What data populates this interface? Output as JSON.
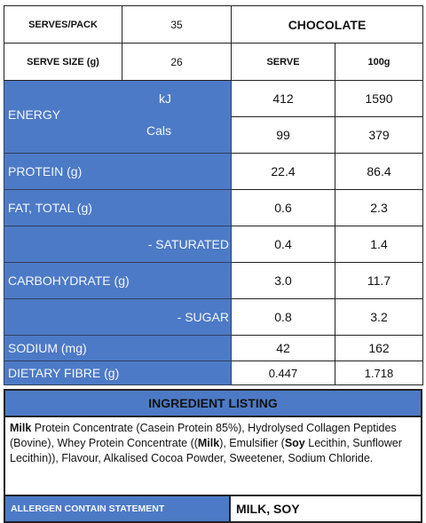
{
  "header": {
    "serves_label": "SERVES/PACK",
    "serves_value": "35",
    "flavour": "CHOCOLATE",
    "serve_size_label": "SERVE SIZE (g)",
    "serve_size_value": "26",
    "col_serve": "SERVE",
    "col_100g": "100g"
  },
  "rows": {
    "energy": {
      "label": "ENERGY",
      "kj_unit": "kJ",
      "kj_serve": "412",
      "kj_100g": "1590",
      "cal_unit": "Cals",
      "cal_serve": "99",
      "cal_100g": "379"
    },
    "protein": {
      "label": "PROTEIN (g)",
      "serve": "22.4",
      "per100": "86.4"
    },
    "fat": {
      "label": "FAT, TOTAL (g)",
      "serve": "0.6",
      "per100": "2.3"
    },
    "saturated": {
      "label": "- SATURATED",
      "serve": "0.4",
      "per100": "1.4"
    },
    "carbohydrate": {
      "label": "CARBOHYDRATE (g)",
      "serve": "3.0",
      "per100": "11.7"
    },
    "sugar": {
      "label": "- SUGAR",
      "serve": "0.8",
      "per100": "3.2"
    },
    "sodium": {
      "label": "SODIUM (mg)",
      "serve": "42",
      "per100": "162"
    },
    "fibre": {
      "label": "DIETARY FIBRE (g)",
      "serve": "0.447",
      "per100": "1.718"
    }
  },
  "ingredients": {
    "heading": "INGREDIENT LISTING",
    "p1_bold": "Milk",
    "p1": " Protein Concentrate (Casein Protein 85%), Hydrolysed Collagen Peptides (Bovine), Whey Protein Concentrate ((",
    "p2_bold": "Milk",
    "p2": "), Emulsifier (",
    "p3_bold": "Soy",
    "p3": " Lecithin, Sunflower Lecithin)), Flavour, Alkalised Cocoa Powder, Sweetener, Sodium Chloride."
  },
  "allergen": {
    "label": "ALLERGEN CONTAIN STATEMENT",
    "value": "MILK, SOY"
  },
  "colors": {
    "label_blue": "#4d7ac6",
    "border": "#222222"
  }
}
